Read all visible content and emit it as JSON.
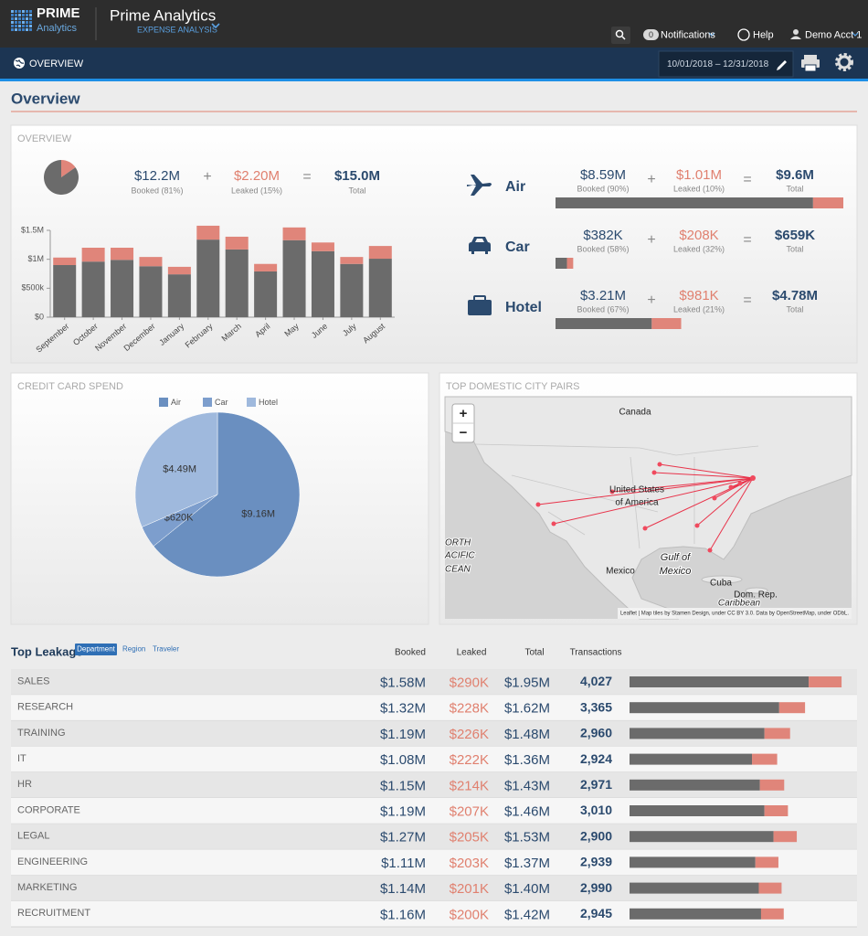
{
  "header": {
    "logo_top": "PRIME",
    "logo_bottom": "Analytics",
    "app_title": "Prime Analytics",
    "app_subtitle": "EXPENSE ANALYSIS",
    "notification_count": "0",
    "notifications": "Notifications",
    "help": "Help",
    "account": "Demo Acct 1"
  },
  "nav": {
    "tab": "OVERVIEW",
    "date_range": "10/01/2018 – 12/31/2018"
  },
  "page_title": "Overview",
  "operators": {
    "plus": "+",
    "equals": "="
  },
  "overview": {
    "title": "OVERVIEW",
    "summary": {
      "booked": 12200000,
      "booked_label": "$12.2M",
      "booked_note": "Booked (81%)",
      "leaked": 2200000,
      "leaked_label": "$2.20M",
      "leaked_note": "Leaked (15%)",
      "total_label": "$15.0M",
      "total_note": "Total"
    },
    "categories": [
      {
        "name": "Air",
        "booked": 8590000,
        "booked_label": "$8.59M",
        "booked_note": "Booked (90%)",
        "leaked": 1010000,
        "leaked_label": "$1.01M",
        "leaked_note": "Leaked (10%)",
        "total_label": "$9.6M",
        "total_note": "Total"
      },
      {
        "name": "Car",
        "booked": 382000,
        "booked_label": "$382K",
        "booked_note": "Booked (58%)",
        "leaked": 208000,
        "leaked_label": "$208K",
        "leaked_note": "Leaked (32%)",
        "total_label": "$659K",
        "total_note": "Total"
      },
      {
        "name": "Hotel",
        "booked": 3210000,
        "booked_label": "$3.21M",
        "booked_note": "Booked (67%)",
        "leaked": 981000,
        "leaked_label": "$981K",
        "leaked_note": "Leaked (21%)",
        "total_label": "$4.78M",
        "total_note": "Total"
      }
    ]
  },
  "chart_data": [
    {
      "type": "bar",
      "stacked": true,
      "categories": [
        "September",
        "October",
        "November",
        "December",
        "January",
        "February",
        "March",
        "April",
        "May",
        "June",
        "July",
        "August"
      ],
      "series": [
        {
          "name": "Booked",
          "color": "#6b6b6b",
          "values": [
            900000,
            960000,
            990000,
            880000,
            740000,
            1340000,
            1170000,
            790000,
            1330000,
            1140000,
            920000,
            1010000
          ]
        },
        {
          "name": "Leaked",
          "color": "#e0857a",
          "values": [
            130000,
            240000,
            210000,
            160000,
            130000,
            240000,
            220000,
            130000,
            220000,
            150000,
            120000,
            220000
          ]
        }
      ],
      "ylim": [
        0,
        1500000
      ],
      "yticks": [
        {
          "value": 0,
          "label": "$0"
        },
        {
          "value": 500000,
          "label": "$500k"
        },
        {
          "value": 1000000,
          "label": "$1M"
        },
        {
          "value": 1500000,
          "label": "$1.5M"
        }
      ],
      "grid": false
    },
    {
      "type": "pie",
      "title": "CREDIT CARD SPEND",
      "categories": [
        "Air",
        "Car",
        "Hotel"
      ],
      "values": [
        9160000,
        620000,
        4490000
      ],
      "value_labels": [
        "$9.16M",
        "$620K",
        "$4.49M"
      ],
      "colors": [
        "#6a8fc0",
        "#7d9ecd",
        "#9fb9dd"
      ],
      "legend": "top"
    }
  ],
  "map": {
    "title": "TOP DOMESTIC CITY PAIRS",
    "zoom_in": "+",
    "zoom_out": "−",
    "labels": [
      "Canada",
      "United States",
      "of America",
      "Mexico",
      "Gulf of",
      "Mexico",
      "Cuba",
      "Dom. Rep.",
      "Caribbean",
      "ORTH",
      "ACIFIC",
      "CEAN"
    ],
    "attribution": "Leaflet | Map tiles by Stamen Design, under CC BY 3.0. Data by OpenStreetMap, under ODbL."
  },
  "leakage": {
    "title": "Top Leakage",
    "tabs": [
      "Department",
      "Region",
      "Traveler"
    ],
    "active_tab": 0,
    "columns": [
      "Booked",
      "Leaked",
      "Total",
      "Transactions"
    ],
    "rows": [
      {
        "name": "SALES",
        "booked": 1580000,
        "booked_label": "$1.58M",
        "leaked": 290000,
        "leaked_label": "$290K",
        "total_label": "$1.95M",
        "transactions": "4,027"
      },
      {
        "name": "RESEARCH",
        "booked": 1320000,
        "booked_label": "$1.32M",
        "leaked": 228000,
        "leaked_label": "$228K",
        "total_label": "$1.62M",
        "transactions": "3,365"
      },
      {
        "name": "TRAINING",
        "booked": 1190000,
        "booked_label": "$1.19M",
        "leaked": 226000,
        "leaked_label": "$226K",
        "total_label": "$1.48M",
        "transactions": "2,960"
      },
      {
        "name": "IT",
        "booked": 1080000,
        "booked_label": "$1.08M",
        "leaked": 222000,
        "leaked_label": "$222K",
        "total_label": "$1.36M",
        "transactions": "2,924"
      },
      {
        "name": "HR",
        "booked": 1150000,
        "booked_label": "$1.15M",
        "leaked": 214000,
        "leaked_label": "$214K",
        "total_label": "$1.43M",
        "transactions": "2,971"
      },
      {
        "name": "CORPORATE",
        "booked": 1190000,
        "booked_label": "$1.19M",
        "leaked": 207000,
        "leaked_label": "$207K",
        "total_label": "$1.46M",
        "transactions": "3,010"
      },
      {
        "name": "LEGAL",
        "booked": 1270000,
        "booked_label": "$1.27M",
        "leaked": 205000,
        "leaked_label": "$205K",
        "total_label": "$1.53M",
        "transactions": "2,900"
      },
      {
        "name": "ENGINEERING",
        "booked": 1110000,
        "booked_label": "$1.11M",
        "leaked": 203000,
        "leaked_label": "$203K",
        "total_label": "$1.37M",
        "transactions": "2,939"
      },
      {
        "name": "MARKETING",
        "booked": 1140000,
        "booked_label": "$1.14M",
        "leaked": 201000,
        "leaked_label": "$201K",
        "total_label": "$1.40M",
        "transactions": "2,990"
      },
      {
        "name": "RECRUITMENT",
        "booked": 1160000,
        "booked_label": "$1.16M",
        "leaked": 200000,
        "leaked_label": "$200K",
        "total_label": "$1.42M",
        "transactions": "2,945"
      }
    ]
  }
}
